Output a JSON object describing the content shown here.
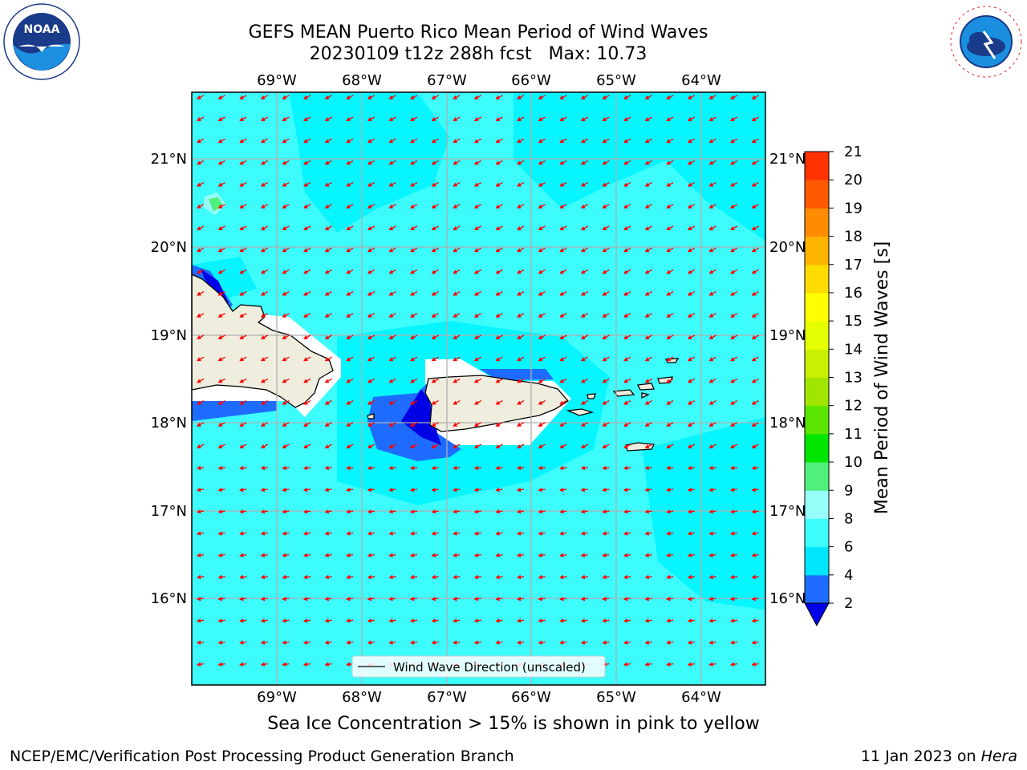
{
  "header": {
    "title_line1": "GEFS MEAN Puerto Rico Mean Period of Wind Waves",
    "title_line2": "20230109 t12z 288h fcst   Max: 10.73"
  },
  "map": {
    "lon_labels": [
      "69°W",
      "68°W",
      "67°W",
      "66°W",
      "65°W",
      "64°W"
    ],
    "lat_labels": [
      "21°N",
      "20°N",
      "19°N",
      "18°N",
      "17°N",
      "16°N"
    ],
    "legend_label": "Wind Wave Direction (unscaled)",
    "ocean_color": "#3cfcfc",
    "land_color": "#efedde",
    "arrow_color": "#ff0000"
  },
  "colorbar": {
    "label": "Mean Period of Wind Waves [s]",
    "ticks": [
      "2",
      "4",
      "6",
      "8",
      "9",
      "10",
      "11",
      "12",
      "13",
      "14",
      "15",
      "16",
      "17",
      "18",
      "19",
      "20",
      "21"
    ],
    "colors": [
      "#1e6cff",
      "#00e6ff",
      "#3cfcfc",
      "#96fffa",
      "#50f07c",
      "#00e600",
      "#5ae600",
      "#a0e600",
      "#c8f000",
      "#e6ff00",
      "#ffff00",
      "#ffdc00",
      "#ffb400",
      "#ff8c00",
      "#ff5a00",
      "#ff3200",
      "#ff0000"
    ],
    "under_color": "#0000e6"
  },
  "subtitle": "Sea Ice Concentration > 15% is shown in pink to yellow",
  "footer": {
    "left": "NCEP/EMC/Verification Post Processing Product Generation Branch",
    "right_prefix": "11 Jan 2023 on ",
    "right_host": "Hera"
  },
  "logos": {
    "noaa": "NOAA",
    "nws": "NATIONAL WEATHER SERVICE"
  }
}
